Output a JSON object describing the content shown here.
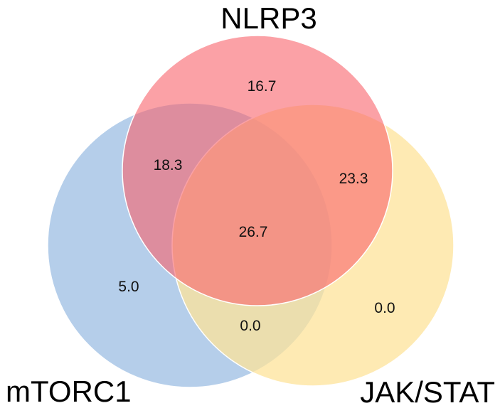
{
  "sets": [
    {
      "id": "nlrp3",
      "label": "NLRP3",
      "color": "#f8626b"
    },
    {
      "id": "mtorc1",
      "label": "mTORC1",
      "color": "#9cbde3"
    },
    {
      "id": "jakstat",
      "label": "JAK/STAT",
      "color": "#fde39a"
    }
  ],
  "regions": {
    "nlrp3_only": "16.7",
    "mtorc1_only": "5.0",
    "jakstat_only": "0.0",
    "nlrp3_mtorc1": "18.3",
    "nlrp3_jakstat": "23.3",
    "mtorc1_jakstat": "0.0",
    "all_three": "26.7"
  }
}
